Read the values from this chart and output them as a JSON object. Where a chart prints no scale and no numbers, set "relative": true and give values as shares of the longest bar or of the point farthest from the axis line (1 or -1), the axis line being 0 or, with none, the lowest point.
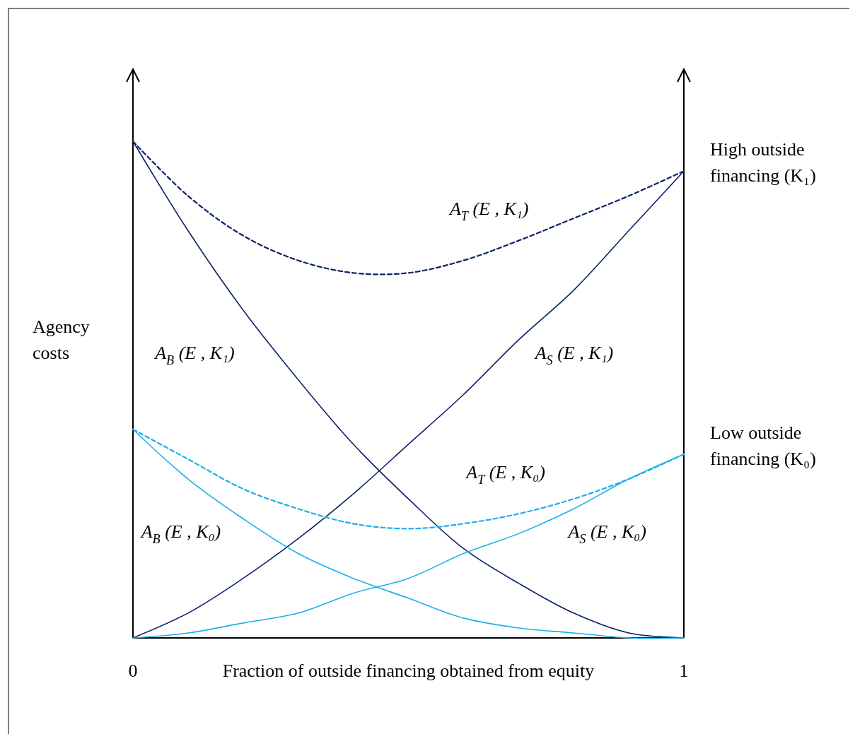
{
  "chart_data": {
    "type": "line",
    "relative": true,
    "xlabel": "Fraction of outside financing obtained from equity",
    "ylabel": "Agency costs",
    "x": [
      0,
      0.1,
      0.2,
      0.3,
      0.4,
      0.5,
      0.6,
      0.7,
      0.8,
      0.9,
      1
    ],
    "xlim": [
      0,
      1
    ],
    "xticks": [
      0,
      1
    ],
    "marker": "none",
    "series": [
      {
        "name": "A$_{B}$ (E , K₁)",
        "color": "#0d2266",
        "line_style": "solid",
        "values": [
          1,
          0.82,
          0.66,
          0.52,
          0.39,
          0.28,
          0.18,
          0.11,
          0.05,
          0.01,
          0
        ]
      },
      {
        "name": "A$_{S}$ (E , K₁)",
        "color": "#0d2266",
        "line_style": "solid",
        "values": [
          0,
          0.05,
          0.12,
          0.2,
          0.29,
          0.39,
          0.49,
          0.6,
          0.7,
          0.82,
          0.94
        ]
      },
      {
        "name": "A$_{T}$ (E , K₁)",
        "color": "#0d2266",
        "line_style": "dashed",
        "values": [
          1,
          0.89,
          0.81,
          0.76,
          0.735,
          0.735,
          0.76,
          0.8,
          0.845,
          0.89,
          0.94
        ]
      },
      {
        "name": "A$_{B}$ (E , K₀)",
        "color": "#1cb0e8",
        "line_style": "solid",
        "values": [
          0.42,
          0.32,
          0.24,
          0.17,
          0.12,
          0.08,
          0.04,
          0.02,
          0.01,
          0,
          0
        ]
      },
      {
        "name": "A$_{S}$ (E , K₀)",
        "color": "#1cb0e8",
        "line_style": "solid",
        "values": [
          0,
          0.01,
          0.03,
          0.05,
          0.09,
          0.12,
          0.17,
          0.21,
          0.26,
          0.32,
          0.37
        ]
      },
      {
        "name": "A$_{T}$ (E , K₀)",
        "color": "#1cb0e8",
        "line_style": "dashed",
        "values": [
          0.42,
          0.36,
          0.3,
          0.26,
          0.23,
          0.22,
          0.23,
          0.25,
          0.28,
          0.32,
          0.37
        ]
      }
    ],
    "annotations": [
      {
        "text": "High outside financing (K₁)",
        "x": 1,
        "y": 0.94
      },
      {
        "text": "Low outside financing (K₀)",
        "x": 1,
        "y": 0.37
      }
    ]
  }
}
